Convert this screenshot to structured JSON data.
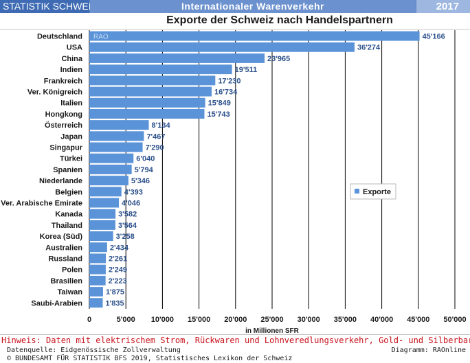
{
  "header": {
    "brand": "STATISTIK SCHWEIZ",
    "section": "Internationaler Warenverkehr",
    "year": "2017"
  },
  "footer": {
    "note": "Hinweis: Daten mit elektrischem Strom, Rückwaren und Lohnveredlungsverkehr, Gold- und Silberbarren sowie Münzen",
    "source": "Datenquelle: Eidgenössische Zollverwaltung",
    "diagram": "Diagramm: RAOnline",
    "copyright": "© BUNDESAMT FÜR STATISTIK BFS 2019, Statistisches Lexikon der Schweiz"
  },
  "chart_data": {
    "type": "bar",
    "orientation": "horizontal",
    "title": "Exporte der Schweiz nach Handelspartnern",
    "xlabel": "in Millionen SFR",
    "ylabel": "",
    "xlim": [
      0,
      50000
    ],
    "x_ticks": [
      0,
      5000,
      10000,
      15000,
      20000,
      25000,
      30000,
      35000,
      40000,
      45000,
      50000
    ],
    "x_tick_labels": [
      "0",
      "5'000",
      "10'000",
      "15'000",
      "20'000",
      "25'000",
      "30'000",
      "35'000",
      "40'000",
      "45'000",
      "50'000"
    ],
    "grid": true,
    "legend": {
      "position": "right",
      "label": "Exporte"
    },
    "watermark": "RAO",
    "bar_color": "#5b93d8",
    "label_color": "#2a4f8a",
    "categories": [
      "Deutschland",
      "USA",
      "China",
      "Indien",
      "Frankreich",
      "Ver. Königreich",
      "Italien",
      "Hongkong",
      "Österreich",
      "Japan",
      "Singapur",
      "Türkei",
      "Spanien",
      "Niederlande",
      "Belgien",
      "Ver. Arabische Emirate",
      "Kanada",
      "Thailand",
      "Korea (Süd)",
      "Australien",
      "Russland",
      "Polen",
      "Brasilien",
      "Taiwan",
      "Saubi-Arabien"
    ],
    "values": [
      45166,
      36274,
      23965,
      19511,
      17230,
      16734,
      15849,
      15743,
      8134,
      7467,
      7290,
      6040,
      5794,
      5346,
      4393,
      4046,
      3582,
      3564,
      3258,
      2434,
      2261,
      2249,
      2223,
      1875,
      1835
    ],
    "value_labels": [
      "45'166",
      "36'274",
      "23'965",
      "19'511",
      "17'230",
      "16'734",
      "15'849",
      "15'743",
      "8'134",
      "7'467",
      "7'290",
      "6'040",
      "5'794",
      "5'346",
      "4'393",
      "4'046",
      "3'582",
      "3'564",
      "3'258",
      "2'434",
      "2'261",
      "2'249",
      "2'223",
      "1'875",
      "1'835"
    ]
  }
}
